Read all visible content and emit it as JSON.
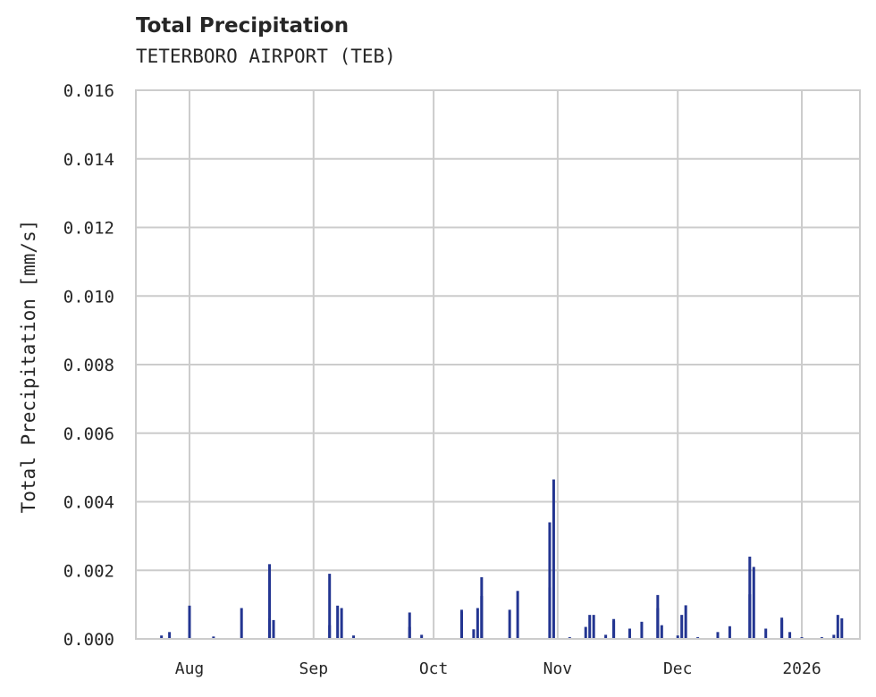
{
  "chart_data": {
    "type": "bar",
    "title": "Total Precipitation",
    "subtitle": "TETERBORO AIRPORT (TEB)",
    "xlabel": "",
    "ylabel": "Total Precipitation [mm/s]",
    "ylim": [
      0.0,
      0.016
    ],
    "yticks": [
      "0.000",
      "0.002",
      "0.004",
      "0.006",
      "0.008",
      "0.010",
      "0.012",
      "0.014",
      "0.016"
    ],
    "xlim": [
      "2025-07-18",
      "2026-01-15"
    ],
    "xticks": [
      {
        "label": "Aug",
        "date": "2025-08-01"
      },
      {
        "label": "Sep",
        "date": "2025-09-01"
      },
      {
        "label": "Oct",
        "date": "2025-10-01"
      },
      {
        "label": "Nov",
        "date": "2025-11-01"
      },
      {
        "label": "Dec",
        "date": "2025-12-01"
      },
      {
        "label": "2026",
        "date": "2026-01-01"
      }
    ],
    "grid": true,
    "series_color": "#233591",
    "series": [
      {
        "name": "Total Precipitation",
        "points": [
          {
            "date": "2025-07-25",
            "value": 0.0001
          },
          {
            "date": "2025-07-27",
            "value": 0.0002
          },
          {
            "date": "2025-08-01",
            "value": 0.00097
          },
          {
            "date": "2025-08-01",
            "value": 0.0004
          },
          {
            "date": "2025-08-07",
            "value": 7e-05
          },
          {
            "date": "2025-08-14",
            "value": 0.0009
          },
          {
            "date": "2025-08-21",
            "value": 0.0006
          },
          {
            "date": "2025-08-21",
            "value": 0.00218
          },
          {
            "date": "2025-08-22",
            "value": 0.00055
          },
          {
            "date": "2025-09-05",
            "value": 0.0019
          },
          {
            "date": "2025-09-05",
            "value": 0.0004
          },
          {
            "date": "2025-09-07",
            "value": 0.00097
          },
          {
            "date": "2025-09-08",
            "value": 0.0009
          },
          {
            "date": "2025-09-11",
            "value": 0.0001
          },
          {
            "date": "2025-09-25",
            "value": 0.00035
          },
          {
            "date": "2025-09-25",
            "value": 0.00077
          },
          {
            "date": "2025-09-28",
            "value": 0.00012
          },
          {
            "date": "2025-10-08",
            "value": 0.00085
          },
          {
            "date": "2025-10-08",
            "value": 0.00078
          },
          {
            "date": "2025-10-11",
            "value": 0.00028
          },
          {
            "date": "2025-10-12",
            "value": 0.0009
          },
          {
            "date": "2025-10-13",
            "value": 0.0018
          },
          {
            "date": "2025-10-13",
            "value": 0.00125
          },
          {
            "date": "2025-10-20",
            "value": 0.00085
          },
          {
            "date": "2025-10-22",
            "value": 0.0014
          },
          {
            "date": "2025-10-30",
            "value": 0.0015
          },
          {
            "date": "2025-10-30",
            "value": 0.0034
          },
          {
            "date": "2025-10-31",
            "value": 0.00465
          },
          {
            "date": "2025-11-04",
            "value": 5e-05
          },
          {
            "date": "2025-11-08",
            "value": 0.00035
          },
          {
            "date": "2025-11-09",
            "value": 0.0007
          },
          {
            "date": "2025-11-10",
            "value": 0.0007
          },
          {
            "date": "2025-11-13",
            "value": 0.00012
          },
          {
            "date": "2025-11-15",
            "value": 0.00058
          },
          {
            "date": "2025-11-15",
            "value": 0.00052
          },
          {
            "date": "2025-11-19",
            "value": 0.0003
          },
          {
            "date": "2025-11-22",
            "value": 0.0005
          },
          {
            "date": "2025-11-26",
            "value": 0.0009
          },
          {
            "date": "2025-11-26",
            "value": 0.00128
          },
          {
            "date": "2025-11-27",
            "value": 0.0004
          },
          {
            "date": "2025-12-01",
            "value": 0.0001
          },
          {
            "date": "2025-12-02",
            "value": 0.0007
          },
          {
            "date": "2025-12-03",
            "value": 0.00098
          },
          {
            "date": "2025-12-06",
            "value": 5e-05
          },
          {
            "date": "2025-12-11",
            "value": 0.0002
          },
          {
            "date": "2025-12-14",
            "value": 0.00037
          },
          {
            "date": "2025-12-19",
            "value": 0.0013
          },
          {
            "date": "2025-12-19",
            "value": 0.0024
          },
          {
            "date": "2025-12-20",
            "value": 0.0021
          },
          {
            "date": "2025-12-23",
            "value": 0.0003
          },
          {
            "date": "2025-12-27",
            "value": 0.00062
          },
          {
            "date": "2025-12-27",
            "value": 0.00055
          },
          {
            "date": "2025-12-29",
            "value": 0.0002
          },
          {
            "date": "2026-01-01",
            "value": 5e-05
          },
          {
            "date": "2026-01-06",
            "value": 5e-05
          },
          {
            "date": "2026-01-09",
            "value": 0.00012
          },
          {
            "date": "2026-01-10",
            "value": 0.0007
          },
          {
            "date": "2026-01-11",
            "value": 0.0006
          }
        ]
      }
    ]
  }
}
